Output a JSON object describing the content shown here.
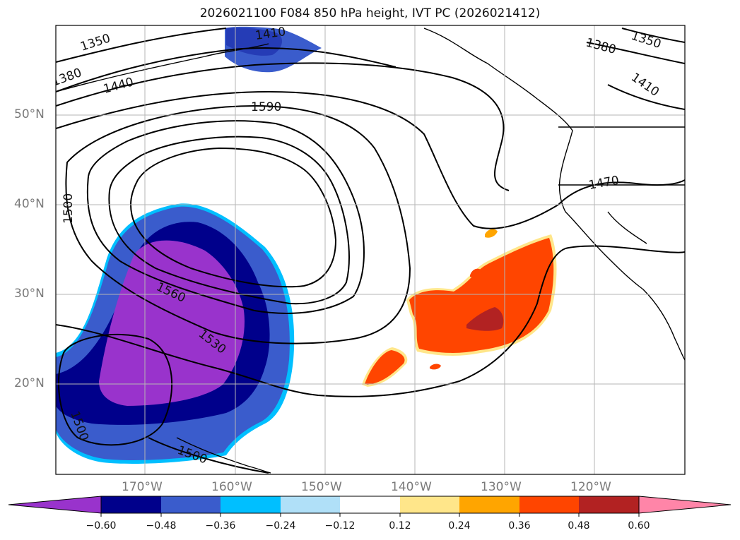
{
  "title": "2026021100 F084 850 hPa height, IVT PC (2026021412)",
  "lat_labels": [
    "50°N",
    "40°N",
    "30°N",
    "20°N"
  ],
  "lon_labels": [
    "170°W",
    "160°W",
    "150°W",
    "140°W",
    "130°W",
    "120°W"
  ],
  "contour_labels": [
    "1350",
    "1410",
    "1380",
    "1440",
    "1590",
    "1500",
    "1560",
    "1530",
    "1500",
    "1500",
    "1380",
    "1350",
    "1410",
    "1470"
  ],
  "colorbar": {
    "ticks": [
      "−0.60",
      "−0.48",
      "−0.36",
      "−0.24",
      "−0.12",
      "0.12",
      "0.24",
      "0.36",
      "0.48",
      "0.60"
    ],
    "colors": [
      "#9933cc",
      "#00008b",
      "#3a5ccc",
      "#00bfff",
      "#b0e0f8",
      "#ffffff",
      "#ffe68a",
      "#ffa500",
      "#ff4500",
      "#b22222",
      "#ff85a8"
    ]
  }
}
